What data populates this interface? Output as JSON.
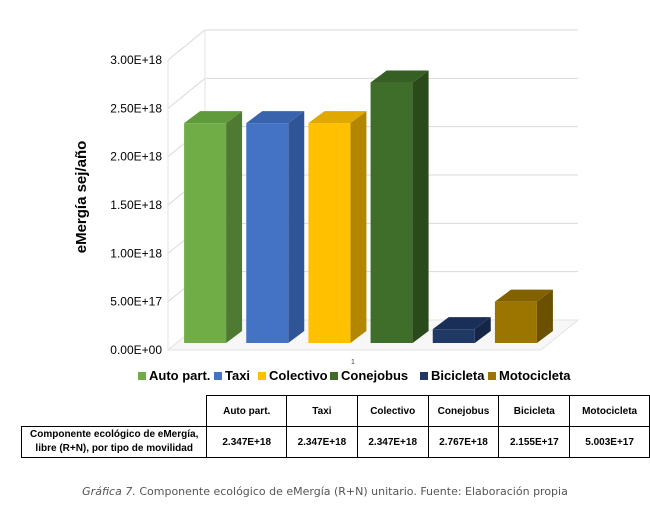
{
  "chart_data": {
    "type": "bar",
    "style": "3d-column",
    "title": "",
    "xlabel": "",
    "ylabel": "eMergía sej/año",
    "ylim": [
      0,
      3e+18
    ],
    "yticks": [
      0,
      5e+17,
      1e+18,
      1.5e+18,
      2e+18,
      2.5e+18,
      3e+18
    ],
    "ytick_labels": [
      "0.00E+00",
      "5.00E+17",
      "1.00E+18",
      "1.50E+18",
      "2.00E+18",
      "2.50E+18",
      "3.00E+18"
    ],
    "categories": [
      "Auto part.",
      "Taxi",
      "Colectivo",
      "Conejobus",
      "Bicicleta",
      "Motocicleta"
    ],
    "values": [
      2.347e+18,
      2.347e+18,
      2.347e+18,
      2.767e+18,
      2.155e+17,
      5.003e+17
    ],
    "colors": [
      "#70ad47",
      "#4472c4",
      "#ffc000",
      "#3f6e2a",
      "#203864",
      "#9c7500"
    ],
    "side_colors": [
      "#4e7a31",
      "#2f5597",
      "#b38600",
      "#2a4a1b",
      "#152546",
      "#6b5000"
    ],
    "top_colors": [
      "#5f9a3b",
      "#3a63ad",
      "#e0a800",
      "#355f23",
      "#1a2f57",
      "#826100"
    ],
    "x_marker": "1",
    "legend_position": "bottom",
    "grid": true
  },
  "table": {
    "headers": [
      "Auto part.",
      "Taxi",
      "Colectivo",
      "Conejobus",
      "Bicicleta",
      "Motocicleta"
    ],
    "row_label_line1": "Componente ecológico de eMergía,",
    "row_label_line2": "libre (R+N), por tipo de movilidad",
    "values": [
      "2.347E+18",
      "2.347E+18",
      "2.347E+18",
      "2.767E+18",
      "2.155E+17",
      "5.003E+17"
    ]
  },
  "caption": {
    "label": "Gráfica 7.",
    "text": " Componente ecológico de eMergía (R+N) unitario. Fuente: Elaboración propia"
  }
}
